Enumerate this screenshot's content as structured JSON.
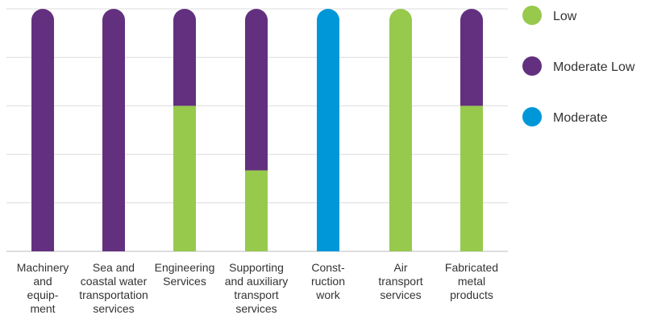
{
  "chart_data": {
    "type": "bar",
    "stacked": true,
    "categories": [
      "Machinery and equipment",
      "Sea and coastal water transportation services",
      "Engineering Services",
      "Supporting and auxiliary transport services",
      "Construction work",
      "Air transport services",
      "Fabricated metal products"
    ],
    "category_lines": [
      [
        "Machinery",
        "and",
        "equip-",
        "ment"
      ],
      [
        "Sea and",
        "coastal water",
        "transportation",
        "services"
      ],
      [
        "Engineering",
        "Services"
      ],
      [
        "Supporting",
        "and auxiliary",
        "transport",
        "services"
      ],
      [
        "Const-",
        "ruction",
        "work"
      ],
      [
        "Air",
        "transport",
        "services"
      ],
      [
        "Fabricated",
        "metal",
        "products"
      ]
    ],
    "series": [
      {
        "name": "Low",
        "color": "#97c94d",
        "values": [
          0,
          0,
          3,
          1.67,
          0,
          5,
          3
        ]
      },
      {
        "name": "Moderate Low",
        "color": "#63307f",
        "values": [
          5,
          5,
          2,
          3.33,
          0,
          0,
          2
        ]
      },
      {
        "name": "Moderate",
        "color": "#0097d9",
        "values": [
          0,
          0,
          0,
          0,
          5,
          0,
          0
        ]
      }
    ],
    "ylim": [
      0,
      5
    ],
    "grid": true,
    "legend": "right",
    "title": "",
    "xlabel": "",
    "ylabel": ""
  }
}
